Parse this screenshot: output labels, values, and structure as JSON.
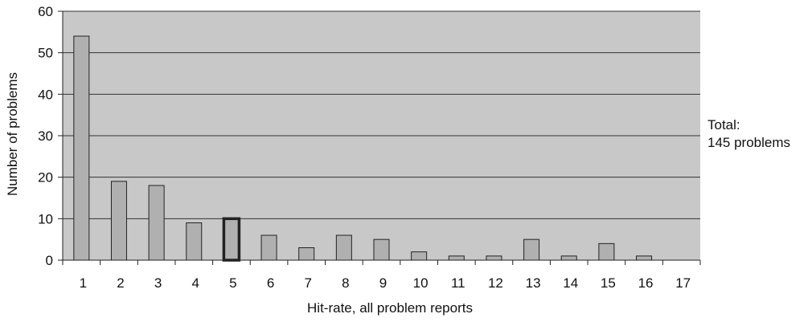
{
  "chart_data": {
    "type": "bar",
    "title": "",
    "xlabel": "Hit-rate, all problem reports",
    "ylabel": "Number of problems",
    "categories": [
      "1",
      "2",
      "3",
      "4",
      "5",
      "6",
      "7",
      "8",
      "9",
      "10",
      "11",
      "12",
      "13",
      "14",
      "15",
      "16",
      "17"
    ],
    "values": [
      54,
      19,
      18,
      9,
      10,
      6,
      3,
      6,
      5,
      2,
      1,
      1,
      5,
      1,
      4,
      1,
      0
    ],
    "highlighted_category": "5",
    "ylim": [
      0,
      60
    ],
    "yticks": [
      0,
      10,
      20,
      30,
      40,
      50,
      60
    ],
    "grid": true,
    "legend": null,
    "annotation": {
      "line1": "Total:",
      "line2": "145 problems",
      "placement": "right"
    },
    "colors": {
      "plot_background": "#c8c8c8",
      "bar_fill": "#b0b0b0",
      "bar_stroke": "#222222",
      "highlight_stroke": "#222222",
      "gridline": "#333333"
    }
  }
}
